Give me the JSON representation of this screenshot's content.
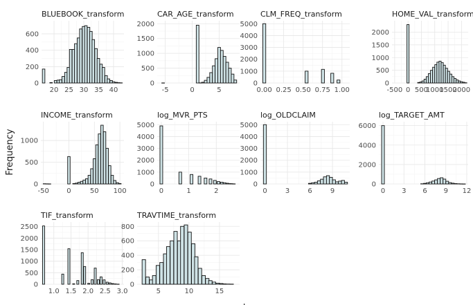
{
  "figure": {
    "ylabel": "Frequency",
    "xlabel": "value"
  },
  "chart_data": [
    {
      "type": "bar",
      "title": "BLUEBOOK_transform",
      "xlim": [
        15.8,
        43.5
      ],
      "ylim": [
        0,
        760
      ],
      "xticks": [
        20,
        25,
        30,
        35,
        40
      ],
      "yticks": [
        0,
        200,
        400,
        600
      ],
      "grid": true,
      "bin_width": 0.85,
      "bins": [
        [
          16.5,
          170
        ],
        [
          19.0,
          5
        ],
        [
          20.5,
          30
        ],
        [
          21.4,
          35
        ],
        [
          22.2,
          40
        ],
        [
          23.1,
          80
        ],
        [
          24.0,
          130
        ],
        [
          24.8,
          190
        ],
        [
          25.6,
          410
        ],
        [
          26.5,
          410
        ],
        [
          27.3,
          480
        ],
        [
          28.2,
          550
        ],
        [
          29.0,
          660
        ],
        [
          29.9,
          690
        ],
        [
          30.7,
          700
        ],
        [
          31.6,
          680
        ],
        [
          32.4,
          630
        ],
        [
          33.2,
          530
        ],
        [
          34.1,
          420
        ],
        [
          34.9,
          300
        ],
        [
          35.8,
          230
        ],
        [
          36.6,
          190
        ],
        [
          37.5,
          90
        ],
        [
          38.3,
          50
        ],
        [
          39.2,
          30
        ],
        [
          40.0,
          15
        ],
        [
          40.9,
          8
        ],
        [
          41.7,
          4
        ],
        [
          42.5,
          2
        ]
      ]
    },
    {
      "type": "bar",
      "title": "CAR_AGE_transform",
      "xlim": [
        -6.5,
        8.8
      ],
      "ylim": [
        0,
        2100
      ],
      "xticks": [
        -5,
        0,
        5
      ],
      "yticks": [
        0,
        500,
        1000,
        1500,
        2000
      ],
      "grid": true,
      "bin_width": 0.5,
      "bins": [
        [
          -5.4,
          3
        ],
        [
          1.0,
          1950
        ],
        [
          1.5,
          5
        ],
        [
          2.0,
          25
        ],
        [
          2.5,
          90
        ],
        [
          3.0,
          190
        ],
        [
          3.5,
          350
        ],
        [
          4.0,
          580
        ],
        [
          4.5,
          820
        ],
        [
          5.0,
          1200
        ],
        [
          5.5,
          1100
        ],
        [
          6.0,
          900
        ],
        [
          6.5,
          700
        ],
        [
          7.0,
          500
        ],
        [
          7.5,
          300
        ],
        [
          8.0,
          100
        ]
      ]
    },
    {
      "type": "bar",
      "title": "CLM_FREQ_transform",
      "xlim": [
        -0.05,
        1.1
      ],
      "ylim": [
        0,
        5250
      ],
      "xticks": [
        0.0,
        0.25,
        0.5,
        0.75,
        1.0
      ],
      "xtick_labels": [
        "0.00",
        "0.25",
        "0.50",
        "0.75",
        "1.00"
      ],
      "yticks": [
        0,
        1000,
        2000,
        3000,
        4000,
        5000
      ],
      "grid": true,
      "bin_width": 0.038,
      "bins": [
        [
          0.0,
          5000
        ],
        [
          0.545,
          1000
        ],
        [
          0.755,
          1150
        ],
        [
          0.875,
          820
        ],
        [
          0.955,
          250
        ]
      ]
    },
    {
      "type": "bar",
      "title": "HOME_VAL_transform",
      "xlim": [
        -600,
        2250
      ],
      "ylim": [
        0,
        2450
      ],
      "xticks": [
        -500,
        0,
        500,
        1000,
        1500,
        2000
      ],
      "yticks": [
        0,
        500,
        1000,
        1500,
        2000
      ],
      "grid": true,
      "bin_width": 80,
      "bins": [
        [
          0,
          2300
        ],
        [
          400,
          20
        ],
        [
          480,
          40
        ],
        [
          560,
          80
        ],
        [
          640,
          150
        ],
        [
          720,
          250
        ],
        [
          800,
          370
        ],
        [
          880,
          500
        ],
        [
          960,
          620
        ],
        [
          1040,
          720
        ],
        [
          1120,
          820
        ],
        [
          1200,
          860
        ],
        [
          1280,
          800
        ],
        [
          1360,
          700
        ],
        [
          1440,
          580
        ],
        [
          1520,
          460
        ],
        [
          1600,
          350
        ],
        [
          1680,
          250
        ],
        [
          1760,
          180
        ],
        [
          1840,
          120
        ],
        [
          1920,
          80
        ],
        [
          2000,
          50
        ],
        [
          2080,
          30
        ],
        [
          2160,
          10
        ]
      ]
    },
    {
      "type": "bar",
      "title": "INCOME_transform",
      "xlim": [
        -55,
        108
      ],
      "ylim": [
        0,
        1430
      ],
      "xticks": [
        -50,
        0,
        50,
        100
      ],
      "yticks": [
        0,
        500,
        1000
      ],
      "grid": true,
      "bin_width": 4.8,
      "bins": [
        [
          -48,
          5
        ],
        [
          -43,
          3
        ],
        [
          -38,
          2
        ],
        [
          0,
          630
        ],
        [
          10,
          10
        ],
        [
          15,
          20
        ],
        [
          20,
          40
        ],
        [
          25,
          60
        ],
        [
          30,
          90
        ],
        [
          35,
          120
        ],
        [
          40,
          200
        ],
        [
          45,
          350
        ],
        [
          50,
          580
        ],
        [
          55,
          900
        ],
        [
          60,
          1150
        ],
        [
          65,
          1350
        ],
        [
          70,
          1200
        ],
        [
          75,
          820
        ],
        [
          80,
          420
        ],
        [
          85,
          200
        ],
        [
          90,
          80
        ],
        [
          95,
          30
        ],
        [
          100,
          10
        ]
      ]
    },
    {
      "type": "bar",
      "title": "log_MVR_PTS",
      "xlim": [
        -0.15,
        2.85
      ],
      "ylim": [
        0,
        5250
      ],
      "xticks": [
        0,
        1,
        2
      ],
      "yticks": [
        0,
        1000,
        2000,
        3000,
        4000,
        5000
      ],
      "grid": true,
      "bin_width": 0.1,
      "bins": [
        [
          0.0,
          4900
        ],
        [
          0.69,
          1000
        ],
        [
          1.1,
          800
        ],
        [
          1.39,
          650
        ],
        [
          1.61,
          500
        ],
        [
          1.79,
          420
        ],
        [
          1.95,
          300
        ],
        [
          2.08,
          200
        ],
        [
          2.2,
          150
        ],
        [
          2.3,
          100
        ],
        [
          2.4,
          60
        ],
        [
          2.5,
          30
        ],
        [
          2.56,
          20
        ],
        [
          2.64,
          10
        ]
      ]
    },
    {
      "type": "bar",
      "title": "log_OLDCLAIM",
      "xlim": [
        -0.6,
        11.3
      ],
      "ylim": [
        0,
        5250
      ],
      "xticks": [
        0,
        3,
        6,
        9
      ],
      "yticks": [
        0,
        1000,
        2000,
        3000,
        4000,
        5000
      ],
      "grid": true,
      "bin_width": 0.4,
      "bins": [
        [
          0.0,
          5000
        ],
        [
          6.0,
          50
        ],
        [
          6.4,
          100
        ],
        [
          6.8,
          150
        ],
        [
          7.2,
          260
        ],
        [
          7.6,
          400
        ],
        [
          8.0,
          600
        ],
        [
          8.4,
          700
        ],
        [
          8.8,
          560
        ],
        [
          9.2,
          350
        ],
        [
          9.6,
          180
        ],
        [
          10.0,
          240
        ],
        [
          10.4,
          300
        ],
        [
          10.8,
          150
        ]
      ]
    },
    {
      "type": "bar",
      "title": "log_TARGET_AMT",
      "xlim": [
        -0.6,
        12.2
      ],
      "ylim": [
        0,
        6400
      ],
      "xticks": [
        0,
        3,
        6,
        9,
        12
      ],
      "yticks": [
        0,
        2000,
        4000,
        6000
      ],
      "grid": true,
      "bin_width": 0.4,
      "bins": [
        [
          0.0,
          6000
        ],
        [
          5.6,
          20
        ],
        [
          6.0,
          60
        ],
        [
          6.4,
          120
        ],
        [
          6.8,
          200
        ],
        [
          7.2,
          300
        ],
        [
          7.6,
          420
        ],
        [
          8.0,
          560
        ],
        [
          8.4,
          640
        ],
        [
          8.8,
          500
        ],
        [
          9.2,
          280
        ],
        [
          9.6,
          140
        ],
        [
          10.0,
          80
        ],
        [
          10.4,
          40
        ],
        [
          10.8,
          20
        ],
        [
          11.2,
          10
        ],
        [
          11.6,
          5
        ]
      ]
    },
    {
      "type": "bar",
      "title": "TIF_transform",
      "xlim": [
        0.62,
        3.05
      ],
      "ylim": [
        0,
        2700
      ],
      "xticks": [
        1.0,
        1.5,
        2.0,
        2.5,
        3.0
      ],
      "xtick_labels": [
        "1.0",
        "1.5",
        "2.0",
        "2.5",
        "3.0"
      ],
      "yticks": [
        0,
        500,
        1000,
        1500,
        2000,
        2500
      ],
      "grid": true,
      "bin_width": 0.06,
      "bins": [
        [
          0.7,
          2530
        ],
        [
          1.26,
          440
        ],
        [
          1.44,
          1540
        ],
        [
          1.58,
          20
        ],
        [
          1.7,
          160
        ],
        [
          1.83,
          1370
        ],
        [
          1.9,
          770
        ],
        [
          2.02,
          40
        ],
        [
          2.12,
          200
        ],
        [
          2.21,
          700
        ],
        [
          2.3,
          200
        ],
        [
          2.38,
          320
        ],
        [
          2.47,
          190
        ],
        [
          2.56,
          90
        ],
        [
          2.64,
          60
        ],
        [
          2.72,
          30
        ],
        [
          2.8,
          15
        ],
        [
          2.88,
          5
        ]
      ]
    },
    {
      "type": "bar",
      "title": "TRAVTIME_transform",
      "xlim": [
        1.5,
        18.3
      ],
      "ylim": [
        0,
        860
      ],
      "xticks": [
        5,
        10,
        15
      ],
      "yticks": [
        0,
        200,
        400,
        600,
        800
      ],
      "grid": true,
      "bin_width": 0.57,
      "bins": [
        [
          2.6,
          340
        ],
        [
          3.2,
          100
        ],
        [
          3.8,
          60
        ],
        [
          4.3,
          120
        ],
        [
          4.9,
          260
        ],
        [
          5.5,
          300
        ],
        [
          6.1,
          420
        ],
        [
          6.6,
          520
        ],
        [
          7.2,
          600
        ],
        [
          7.8,
          730
        ],
        [
          8.4,
          600
        ],
        [
          8.9,
          800
        ],
        [
          9.5,
          820
        ],
        [
          10.1,
          720
        ],
        [
          10.7,
          560
        ],
        [
          11.2,
          380
        ],
        [
          11.8,
          220
        ],
        [
          12.4,
          120
        ],
        [
          13.0,
          80
        ],
        [
          13.5,
          50
        ],
        [
          14.1,
          30
        ],
        [
          14.7,
          15
        ],
        [
          15.3,
          10
        ],
        [
          15.8,
          5
        ],
        [
          16.4,
          3
        ],
        [
          17.0,
          2
        ]
      ]
    }
  ]
}
